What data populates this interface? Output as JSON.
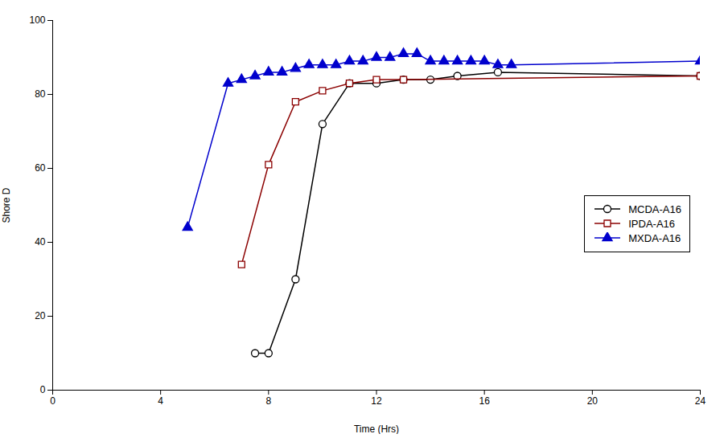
{
  "chart_data": {
    "type": "line",
    "xlabel": "Time (Hrs)",
    "ylabel": "Shore D",
    "xlim": [
      0,
      24
    ],
    "ylim": [
      0,
      100
    ],
    "xticks": [
      0,
      4,
      8,
      12,
      16,
      20,
      24
    ],
    "yticks": [
      0,
      20,
      40,
      60,
      80,
      100
    ],
    "grid": false,
    "legend": "right",
    "series": [
      {
        "name": "MCDA-A16",
        "color": "#000000",
        "marker": "open_circle",
        "x": [
          7.5,
          8.0,
          9.0,
          10.0,
          11.0,
          12.0,
          13.0,
          14.0,
          15.0,
          16.5,
          24.0
        ],
        "values": [
          10,
          10,
          30,
          72,
          83,
          83,
          84,
          84,
          85,
          86,
          85
        ]
      },
      {
        "name": "IPDA-A16",
        "color": "#8B0000",
        "marker": "open_square",
        "x": [
          7.0,
          8.0,
          9.0,
          10.0,
          11.0,
          12.0,
          13.0,
          24.0
        ],
        "values": [
          34,
          61,
          78,
          81,
          83,
          84,
          84,
          85
        ]
      },
      {
        "name": "MXDA-A16",
        "color": "#0000CD",
        "marker": "triangle",
        "x": [
          5.0,
          6.5,
          7.0,
          7.5,
          8.0,
          8.5,
          9.0,
          9.5,
          10.0,
          10.5,
          11.0,
          11.5,
          12.0,
          12.5,
          13.0,
          13.5,
          14.0,
          14.5,
          15.0,
          15.5,
          16.0,
          16.5,
          17.0,
          24.0
        ],
        "values": [
          44,
          83,
          84,
          85,
          86,
          86,
          87,
          88,
          88,
          88,
          89,
          89,
          90,
          90,
          91,
          91,
          89,
          89,
          89,
          89,
          89,
          88,
          88,
          89
        ]
      }
    ]
  }
}
